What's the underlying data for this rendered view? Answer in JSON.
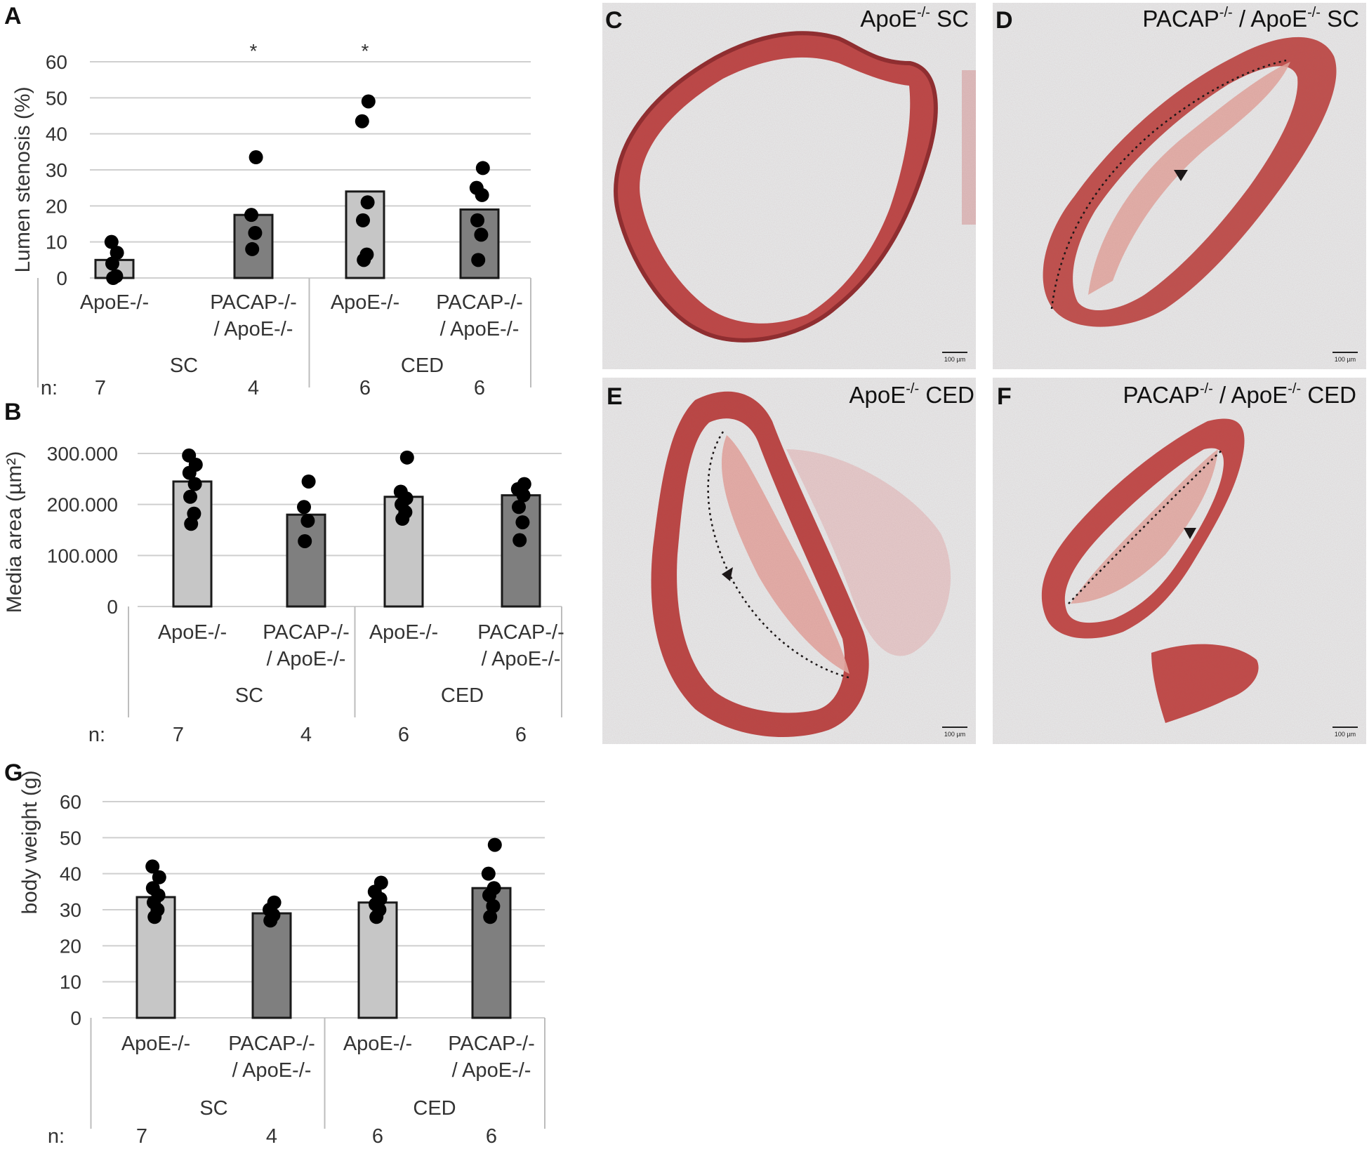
{
  "chart_data": [
    {
      "panel": "A",
      "type": "bar",
      "ylabel": "Lumen stenosis (%)",
      "ylim": [
        0,
        60
      ],
      "yticks": [
        0,
        10,
        20,
        30,
        40,
        50,
        60
      ],
      "grid": true,
      "categories": [
        "ApoE-/-",
        "PACAP-/-\n/ ApoE-/-",
        "ApoE-/-",
        "PACAP-/-\n/ ApoE-/-"
      ],
      "groups": [
        "SC",
        "CED"
      ],
      "n_label": "n:",
      "n": [
        "7",
        "4",
        "6",
        "6"
      ],
      "values": [
        5,
        17.5,
        24,
        19
      ],
      "points": [
        [
          0,
          0.5,
          4,
          7,
          10
        ],
        [
          8,
          12.5,
          17.5,
          33.5
        ],
        [
          5,
          6.5,
          16,
          21,
          43.5,
          49
        ],
        [
          5,
          12,
          16,
          23,
          25,
          30.5
        ]
      ],
      "annotations": [
        "",
        "*",
        "*",
        ""
      ],
      "bar_colors": [
        "#c6c6c6",
        "#7f7f7f",
        "#c6c6c6",
        "#7f7f7f"
      ]
    },
    {
      "panel": "B",
      "type": "bar",
      "ylabel": "Media area (µm²)",
      "ylim": [
        0,
        300000
      ],
      "yticks": [
        0,
        100000,
        200000,
        300000
      ],
      "ytick_labels": [
        "0",
        "100.000",
        "200.000",
        "300.000"
      ],
      "grid": true,
      "categories": [
        "ApoE-/-",
        "PACAP-/-\n/ ApoE-/-",
        "ApoE-/-",
        "PACAP-/-\n/ ApoE-/-"
      ],
      "groups": [
        "SC",
        "CED"
      ],
      "n_label": "n:",
      "n": [
        "7",
        "4",
        "6",
        "6"
      ],
      "values": [
        245000,
        180000,
        215000,
        218000
      ],
      "points": [
        [
          162000,
          182000,
          215000,
          240000,
          262000,
          278000,
          296000
        ],
        [
          128000,
          168000,
          195000,
          245000
        ],
        [
          172000,
          185000,
          200000,
          212000,
          225000,
          292000
        ],
        [
          130000,
          165000,
          195000,
          218000,
          230000,
          240000
        ]
      ],
      "bar_colors": [
        "#c6c6c6",
        "#7f7f7f",
        "#c6c6c6",
        "#7f7f7f"
      ]
    },
    {
      "panel": "G",
      "type": "bar",
      "ylabel": "body weight (g)",
      "ylim": [
        0,
        60
      ],
      "yticks": [
        0,
        10,
        20,
        30,
        40,
        50,
        60
      ],
      "grid": true,
      "categories": [
        "ApoE-/-",
        "PACAP-/-\n/ ApoE-/-",
        "ApoE-/-",
        "PACAP-/-\n/ ApoE-/-"
      ],
      "groups": [
        "SC",
        "CED"
      ],
      "n_label": "n:",
      "n": [
        "7",
        "4",
        "6",
        "6"
      ],
      "values": [
        33.5,
        29,
        32,
        36
      ],
      "points": [
        [
          28,
          30,
          32,
          34,
          36,
          39,
          42
        ],
        [
          27,
          28.5,
          30,
          32
        ],
        [
          28,
          30,
          31.5,
          33,
          35,
          37.5
        ],
        [
          28,
          31,
          34,
          36,
          40,
          48
        ]
      ],
      "bar_colors": [
        "#c6c6c6",
        "#7f7f7f",
        "#c6c6c6",
        "#7f7f7f"
      ]
    }
  ],
  "histology": [
    {
      "letter": "C",
      "label_main": "ApoE",
      "label_sup": "-/-",
      "label_rest": " SC",
      "scale_bar": "100 µm"
    },
    {
      "letter": "D",
      "label_main": "PACAP",
      "label_sup": "-/-",
      "label_mid": " / ApoE",
      "label_sup2": "-/-",
      "label_rest": " SC",
      "scale_bar": "100 µm"
    },
    {
      "letter": "E",
      "label_main": "ApoE",
      "label_sup": "-/-",
      "label_rest": " CED",
      "scale_bar": "100 µm"
    },
    {
      "letter": "F",
      "label_main": "PACAP",
      "label_sup": "-/-",
      "label_mid": " / ApoE",
      "label_sup2": "-/-",
      "label_rest": " CED",
      "scale_bar": "100 µm"
    }
  ],
  "colors": {
    "tissue_dark": "#b8403f",
    "tissue_light": "#e9a49a",
    "histology_bg": "#e7ebec",
    "bar_light": "#c6c6c6",
    "bar_dark": "#7f7f7f"
  }
}
